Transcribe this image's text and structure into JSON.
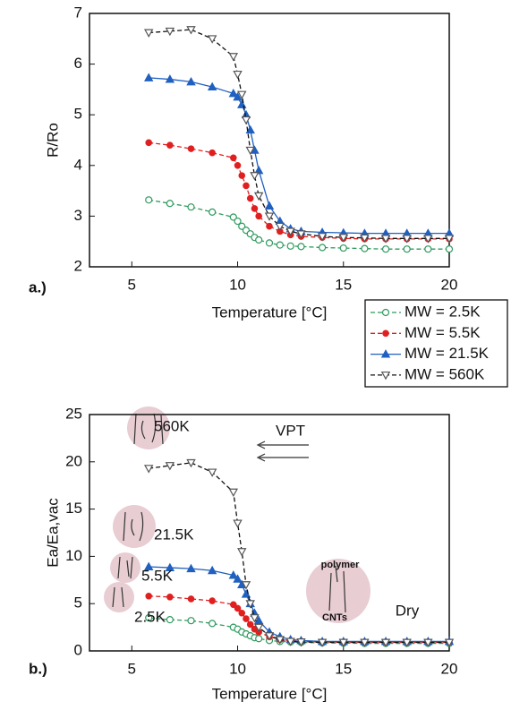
{
  "chart_data": [
    {
      "type": "line",
      "panel_label": "a.)",
      "xlabel": "Temperature [°C]",
      "ylabel": "R/Ro",
      "xlim": [
        3,
        20
      ],
      "ylim": [
        2,
        7
      ],
      "xticks": [
        5,
        10,
        15,
        20
      ],
      "yticks": [
        2,
        3,
        4,
        5,
        6,
        7
      ],
      "legend": "outside-right",
      "x": [
        5.8,
        6.8,
        7.8,
        8.8,
        9.8,
        10,
        10.2,
        10.4,
        10.6,
        10.8,
        11,
        11.5,
        12,
        12.5,
        13,
        14,
        15,
        16,
        17,
        18,
        19,
        20
      ],
      "series": [
        {
          "name": "MW = 2.5K",
          "color": "#2e9a5e",
          "marker": "open-circle",
          "linestyle": "dashed",
          "values": [
            3.32,
            3.25,
            3.18,
            3.08,
            2.98,
            2.9,
            2.8,
            2.72,
            2.65,
            2.58,
            2.53,
            2.47,
            2.43,
            2.41,
            2.4,
            2.38,
            2.37,
            2.36,
            2.35,
            2.35,
            2.35,
            2.35
          ]
        },
        {
          "name": "MW = 5.5K",
          "color": "#e02020",
          "marker": "filled-circle",
          "linestyle": "dashed",
          "values": [
            4.45,
            4.4,
            4.33,
            4.25,
            4.15,
            4.0,
            3.8,
            3.6,
            3.35,
            3.15,
            3.0,
            2.8,
            2.7,
            2.63,
            2.6,
            2.58,
            2.56,
            2.55,
            2.55,
            2.55,
            2.55,
            2.55
          ]
        },
        {
          "name": "MW = 21.5K",
          "color": "#2060c0",
          "marker": "triangle",
          "linestyle": "solid",
          "values": [
            5.73,
            5.7,
            5.65,
            5.55,
            5.42,
            5.35,
            5.2,
            5.0,
            4.7,
            4.3,
            3.9,
            3.2,
            2.9,
            2.75,
            2.7,
            2.68,
            2.67,
            2.66,
            2.66,
            2.66,
            2.66,
            2.66
          ]
        },
        {
          "name": "MW = 560K",
          "color": "#555555",
          "marker": "down-triangle",
          "linestyle": "dashed",
          "values": [
            6.62,
            6.65,
            6.68,
            6.5,
            6.15,
            5.8,
            5.4,
            4.9,
            4.3,
            3.8,
            3.4,
            3.0,
            2.8,
            2.7,
            2.65,
            2.6,
            2.58,
            2.57,
            2.56,
            2.56,
            2.56,
            2.56
          ]
        }
      ]
    },
    {
      "type": "line",
      "panel_label": "b.)",
      "xlabel": "Temperature [°C]",
      "ylabel": "Ea/Ea,vac",
      "xlim": [
        3,
        20
      ],
      "ylim": [
        0,
        25
      ],
      "xticks": [
        5,
        10,
        15,
        20
      ],
      "yticks": [
        0,
        5,
        10,
        15,
        20,
        25
      ],
      "annotations": [
        "560K",
        "VPT",
        "21.5K",
        "5.5K",
        "2.5K",
        "polymer",
        "CNTs",
        "Dry"
      ],
      "x": [
        5.8,
        6.8,
        7.8,
        8.8,
        9.8,
        10,
        10.2,
        10.4,
        10.6,
        10.8,
        11,
        11.5,
        12,
        12.5,
        13,
        14,
        15,
        16,
        17,
        18,
        19,
        20
      ],
      "series": [
        {
          "color": "#2e9a5e",
          "marker": "open-circle",
          "linestyle": "dashed",
          "values": [
            3.5,
            3.3,
            3.2,
            2.9,
            2.5,
            2.3,
            2.0,
            1.8,
            1.6,
            1.4,
            1.3,
            1.1,
            1.0,
            0.95,
            0.9,
            0.85,
            0.82,
            0.8,
            0.8,
            0.8,
            0.8,
            0.8
          ]
        },
        {
          "color": "#e02020",
          "marker": "filled-circle",
          "linestyle": "dashed",
          "values": [
            5.8,
            5.7,
            5.5,
            5.3,
            4.9,
            4.5,
            4.0,
            3.4,
            2.8,
            2.3,
            2.0,
            1.5,
            1.2,
            1.1,
            1.0,
            0.95,
            0.9,
            0.9,
            0.9,
            0.9,
            0.9,
            0.9
          ]
        },
        {
          "color": "#2060c0",
          "marker": "triangle",
          "linestyle": "solid",
          "values": [
            8.9,
            8.8,
            8.7,
            8.5,
            8.0,
            7.6,
            7.0,
            6.0,
            5.0,
            4.0,
            3.2,
            2.0,
            1.5,
            1.2,
            1.1,
            1.0,
            1.0,
            1.0,
            1.0,
            1.0,
            1.0,
            1.0
          ]
        },
        {
          "color": "#555555",
          "marker": "down-triangle",
          "linestyle": "dashed",
          "values": [
            19.3,
            19.6,
            19.9,
            18.9,
            16.8,
            13.5,
            10.5,
            7.0,
            5.0,
            3.5,
            2.5,
            1.6,
            1.2,
            1.0,
            0.95,
            0.9,
            0.9,
            0.9,
            0.9,
            0.9,
            0.9,
            0.9
          ]
        }
      ]
    }
  ]
}
